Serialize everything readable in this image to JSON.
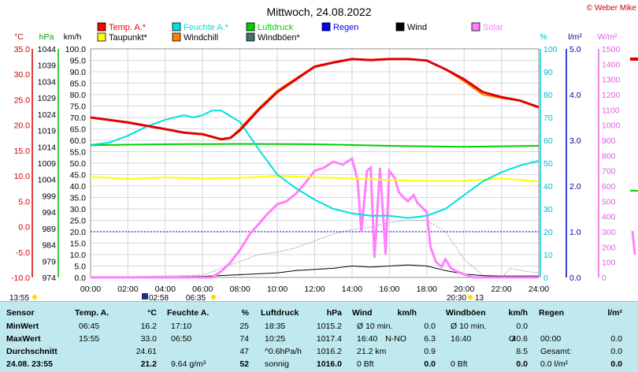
{
  "chart_data": {
    "type": "line",
    "title": "Mittwoch, 24.08.2022",
    "credit": "© Weber Mike",
    "x_ticks": [
      "00:00",
      "02:00",
      "04:00",
      "06:00",
      "08:00",
      "10:00",
      "12:00",
      "14:00",
      "16:00",
      "18:00",
      "20:00",
      "22:00",
      "24:00"
    ],
    "axes": {
      "temp_c": {
        "label": "°C",
        "ticks": [
          "35.0",
          "30.0",
          "25.0",
          "20.0",
          "15.0",
          "10.0",
          "5.0",
          "0.0",
          "-5.0",
          "-10.0"
        ],
        "ylim": [
          -10,
          35
        ],
        "color": "#d00000"
      },
      "pressure": {
        "label": "hPa",
        "ticks": [
          "1044",
          "1039",
          "1034",
          "1029",
          "1024",
          "1019",
          "1014",
          "1009",
          "1004",
          "999",
          "994",
          "989",
          "984",
          "979",
          "974"
        ],
        "ylim": [
          974,
          1044
        ],
        "color": "#00a000"
      },
      "wind_kmh": {
        "label": "km/h",
        "ticks": [
          "100.0",
          "95.0",
          "90.0",
          "85.0",
          "80.0",
          "75.0",
          "70.0",
          "65.0",
          "60.0",
          "55.0",
          "50.0",
          "45.0",
          "40.0",
          "35.0",
          "30.0",
          "25.0",
          "20.0",
          "15.0",
          "10.0",
          "5.0",
          "0.0"
        ],
        "ylim": [
          0,
          100
        ],
        "color": "#000000"
      },
      "humidity": {
        "label": "%",
        "ticks": [
          "100",
          "90",
          "80",
          "70",
          "60",
          "50",
          "40",
          "30",
          "20",
          "10",
          "0"
        ],
        "ylim": [
          0,
          100
        ],
        "color": "#00b8c8"
      },
      "rain": {
        "label": "l/m²",
        "ticks": [
          "5.0",
          "4.0",
          "3.0",
          "2.0",
          "1.0",
          "0.0"
        ],
        "ylim": [
          0,
          5
        ],
        "color": "#0000a0"
      },
      "solar": {
        "label": "W/m²",
        "ticks": [
          "1500",
          "1400",
          "1300",
          "1200",
          "1100",
          "1000",
          "900",
          "800",
          "700",
          "600",
          "500",
          "400",
          "300",
          "200",
          "100",
          "0"
        ],
        "ylim": [
          0,
          1500
        ],
        "color": "#e060e0"
      }
    },
    "legend": [
      {
        "label": "Temp. A.*",
        "color": "#ff0000"
      },
      {
        "label": "Feuchte A.*",
        "color": "#00e0e0"
      },
      {
        "label": "Luftdruck",
        "color": "#00d000"
      },
      {
        "label": "Regen",
        "color": "#0000ff"
      },
      {
        "label": "Wind",
        "color": "#000000"
      },
      {
        "label": "Solar",
        "color": "#ff80ff"
      },
      {
        "label": "Taupunkt*",
        "color": "#ffff00"
      },
      {
        "label": "Windchill",
        "color": "#ff8000"
      },
      {
        "label": "Windböen*",
        "color": "#407070"
      }
    ],
    "series": {
      "temperature": {
        "x": [
          0,
          2,
          4,
          5,
          6,
          7,
          7.5,
          8,
          9,
          10,
          11,
          12,
          13,
          14,
          15,
          16,
          17,
          18,
          19,
          20,
          21,
          22,
          23,
          24
        ],
        "y": [
          21.5,
          20.5,
          19.2,
          18.5,
          18.2,
          17.2,
          17.5,
          19.0,
          23.0,
          26.5,
          29.0,
          31.5,
          32.3,
          33.0,
          32.8,
          33.0,
          33.0,
          32.7,
          31.0,
          29.0,
          26.5,
          25.5,
          24.8,
          23.5
        ]
      },
      "windchill": {
        "x": [
          0,
          2,
          4,
          5,
          6,
          7,
          7.5,
          8,
          9,
          10,
          11,
          12,
          13,
          14,
          15,
          16,
          17,
          18,
          19,
          20,
          21,
          22,
          23,
          24
        ],
        "y": [
          21.5,
          20.5,
          19.2,
          18.5,
          18.2,
          17.2,
          17.5,
          19.3,
          23.3,
          26.8,
          29.2,
          31.6,
          32.4,
          33.0,
          32.9,
          33.0,
          33.0,
          32.7,
          31.0,
          28.6,
          26.0,
          25.3,
          24.8,
          23.5
        ]
      },
      "humidity": {
        "x": [
          0,
          1,
          2,
          3,
          4,
          5,
          5.5,
          6,
          6.5,
          7,
          8,
          9,
          10,
          11,
          12,
          13,
          14,
          15,
          16,
          17,
          18,
          19,
          20,
          21,
          22,
          23,
          24
        ],
        "y": [
          58,
          59,
          62,
          66,
          69,
          71,
          70,
          71,
          73,
          73,
          68,
          56,
          45,
          39,
          34,
          30,
          28,
          27,
          27,
          26,
          27,
          30,
          36,
          42,
          46,
          49,
          51
        ]
      },
      "dewpoint": {
        "x": [
          0,
          2,
          4,
          6,
          8,
          10,
          12,
          14,
          16,
          18,
          20,
          22,
          24
        ],
        "y": [
          9.8,
          9.4,
          9.7,
          9.5,
          9.6,
          10.0,
          9.7,
          9.5,
          9.2,
          9.0,
          9.0,
          9.5,
          8.9
        ]
      },
      "pressure": {
        "x": [
          0,
          4,
          8,
          12,
          16,
          20,
          24
        ],
        "y": [
          1014.5,
          1014.8,
          1014.9,
          1014.8,
          1014.3,
          1014.0,
          1014.3
        ]
      },
      "wind": {
        "x": [
          0,
          2,
          4,
          6,
          8,
          10,
          11,
          12,
          13,
          14,
          15,
          16,
          17,
          18,
          19,
          20,
          21,
          22,
          23,
          24
        ],
        "y": [
          0.3,
          0.3,
          0.3,
          0.5,
          1.2,
          2.0,
          3.0,
          3.5,
          4.0,
          5.0,
          4.5,
          5.0,
          5.5,
          5.0,
          3.0,
          1.5,
          0.8,
          0.6,
          0.6,
          0.6
        ]
      },
      "gusts": {
        "x": [
          0,
          6,
          7,
          8,
          9,
          10,
          11,
          12,
          13,
          14,
          15,
          16,
          17,
          18,
          19,
          20,
          21,
          22,
          22.5,
          23,
          24
        ],
        "y": [
          0,
          1,
          4,
          7,
          10,
          11,
          13,
          16,
          19,
          21,
          22,
          24,
          25,
          25,
          20,
          8,
          1,
          0,
          4,
          3,
          2
        ]
      },
      "solar": {
        "x": [
          0,
          6.5,
          7,
          7.5,
          8,
          8.5,
          9,
          9.5,
          10,
          10.5,
          11,
          11.5,
          12,
          12.5,
          13,
          13.5,
          14,
          14.3,
          14.5,
          14.8,
          15,
          15.2,
          15.5,
          15.8,
          16,
          16.3,
          16.5,
          16.8,
          17,
          17.3,
          17.5,
          18,
          18.2,
          18.5,
          18.8,
          19,
          19.3,
          19.6,
          20,
          20.5,
          24
        ],
        "y": [
          0,
          0,
          40,
          100,
          180,
          280,
          350,
          420,
          480,
          500,
          550,
          620,
          700,
          720,
          760,
          740,
          780,
          640,
          300,
          700,
          720,
          130,
          720,
          150,
          700,
          650,
          560,
          520,
          500,
          540,
          490,
          430,
          200,
          100,
          70,
          120,
          60,
          40,
          20,
          0,
          0
        ]
      }
    }
  },
  "stats": {
    "headers": [
      "Sensor",
      "Temp. A.",
      "°C",
      "Feuchte A.",
      "%",
      "Luftdruck",
      "hPa",
      "Wind",
      "km/h",
      "Windböen",
      "km/h",
      "Regen",
      "l/m²"
    ],
    "rows": [
      {
        "label": "MinWert",
        "t_time": "06:45",
        "t_val": "16.2",
        "h_time": "17:10",
        "h_val": "25",
        "p_time": "18:35",
        "p_val": "1015.2",
        "w_text": "Ø 10 min.",
        "w_val": "0.0",
        "g_text": "Ø 10 min.",
        "g_val": "0.0",
        "r_text": "",
        "r_val": ""
      },
      {
        "label": "MaxWert",
        "t_time": "15:55",
        "t_val": "33.0",
        "h_time": "06:50",
        "h_val": "74",
        "p_time": "10:25",
        "p_val": "1017.4",
        "w_text": "16:40",
        "w_mid": "N-NO",
        "w_val": "6.3",
        "g_text": "16:40",
        "g_mid": "O",
        "g_val": "40.6",
        "r_text": "00:00",
        "r_val": "0.0"
      },
      {
        "label": "Durchschnitt",
        "t_time": "",
        "t_val": "24.61",
        "h_time": "",
        "h_val": "47",
        "p_time": "^0.6hPa/h",
        "p_val": "1016.2",
        "w_text": "21.2 km",
        "w_val": "0.9",
        "g_text": "",
        "g_val": "8.5",
        "r_text": "Gesamt:",
        "r_val": "0.0"
      },
      {
        "label": "24.08. 23:55",
        "t_time": "",
        "t_val": "21.2",
        "h_time": "9.64 g/m³",
        "h_val": "52",
        "p_time": "sonnig",
        "p_val": "1016.0",
        "w_text": "0 Bft",
        "w_val": "0.0",
        "g_text": "0 Bft",
        "g_val": "0.0",
        "r_text": "0.0 l/m²",
        "r_val": "0.0"
      }
    ]
  },
  "sun_markers": {
    "left": "13:55",
    "rise": "02:58",
    "set": "06:35",
    "right": "20:30",
    "right2": "13"
  }
}
